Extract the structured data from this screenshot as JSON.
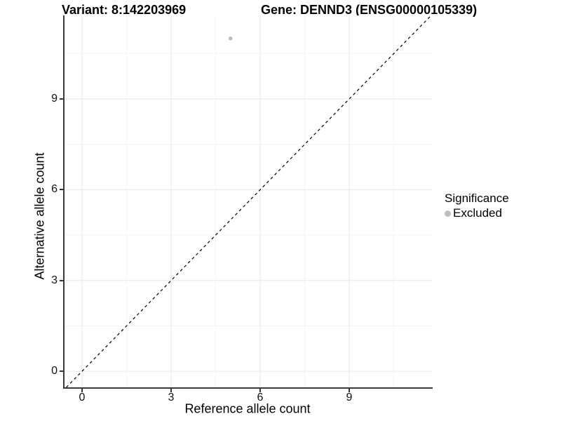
{
  "titles": {
    "variant": "Variant: 8:142203969",
    "gene": "Gene: DENND3 (ENSG00000105339)"
  },
  "axes": {
    "x": {
      "label": "Reference allele count",
      "ticks": [
        "0",
        "3",
        "6",
        "9"
      ]
    },
    "y": {
      "label": "Alternative allele count",
      "ticks": [
        "0",
        "3",
        "6",
        "9"
      ]
    }
  },
  "legend": {
    "title": "Significance",
    "items": [
      {
        "label": "Excluded",
        "color": "#bdbdbd"
      }
    ]
  },
  "colors": {
    "point": "#bdbdbd",
    "grid_major": "#e7e7e7",
    "grid_minor": "#f4f4f4",
    "axis_line": "#3a3a3a",
    "dashed_line": "#000000",
    "background": "#ffffff"
  },
  "chart_data": {
    "type": "scatter",
    "title": "Variant: 8:142203969 | Gene: DENND3 (ENSG00000105339)",
    "xlabel": "Reference allele count",
    "ylabel": "Alternative allele count",
    "xlim": [
      -0.59,
      11.81
    ],
    "ylim": [
      -0.53,
      11.76
    ],
    "x_ticks": [
      0,
      3,
      6,
      9
    ],
    "y_ticks": [
      0,
      3,
      6,
      9
    ],
    "grid": "major and minor gridlines, light gray on white",
    "legend_position": "right",
    "series": [
      {
        "name": "Excluded",
        "color": "#bdbdbd",
        "point_radius": 2.8,
        "points": [
          {
            "x": 5,
            "y": 11
          }
        ]
      }
    ],
    "reference_line": {
      "kind": "identity",
      "equation": "y = x",
      "style": "dashed",
      "color": "#000000"
    }
  }
}
